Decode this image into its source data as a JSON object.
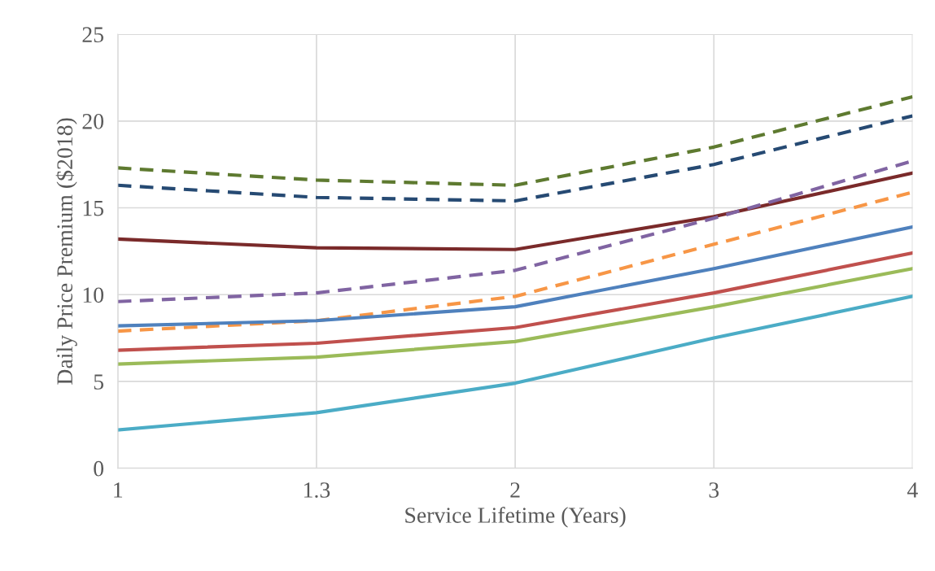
{
  "chart_data": {
    "type": "line",
    "xlabel": "Service Lifetime (Years)",
    "ylabel": "Daily Price Premium ($2018)",
    "categories": [
      "1",
      "1.3",
      "2",
      "3",
      "4"
    ],
    "ylim": [
      0,
      25
    ],
    "yticks": [
      0,
      5,
      10,
      15,
      20,
      25
    ],
    "grid": true,
    "legend": false,
    "marker": "none",
    "series": [
      {
        "color": "#5e7a30",
        "line_style": "dashed",
        "values": [
          17.3,
          16.6,
          16.3,
          18.5,
          21.4
        ]
      },
      {
        "color": "#264a73",
        "line_style": "dashed",
        "values": [
          16.3,
          15.6,
          15.4,
          17.5,
          20.3
        ]
      },
      {
        "color": "#7a2a2a",
        "line_style": "solid",
        "values": [
          13.2,
          12.7,
          12.6,
          14.5,
          17.0
        ]
      },
      {
        "color": "#8064a2",
        "line_style": "dashed",
        "values": [
          9.6,
          10.1,
          11.4,
          14.4,
          17.7
        ]
      },
      {
        "color": "#f79646",
        "line_style": "dashed",
        "values": [
          7.9,
          8.5,
          9.9,
          12.9,
          15.9
        ]
      },
      {
        "color": "#4f81bd",
        "line_style": "solid",
        "values": [
          8.2,
          8.5,
          9.3,
          11.5,
          13.9
        ]
      },
      {
        "color": "#c0504d",
        "line_style": "solid",
        "values": [
          6.8,
          7.2,
          8.1,
          10.1,
          12.4
        ]
      },
      {
        "color": "#9bbb59",
        "line_style": "solid",
        "values": [
          6.0,
          6.4,
          7.3,
          9.3,
          11.5
        ]
      },
      {
        "color": "#4bacc6",
        "line_style": "solid",
        "values": [
          2.2,
          3.2,
          4.9,
          7.5,
          9.9
        ]
      }
    ]
  }
}
